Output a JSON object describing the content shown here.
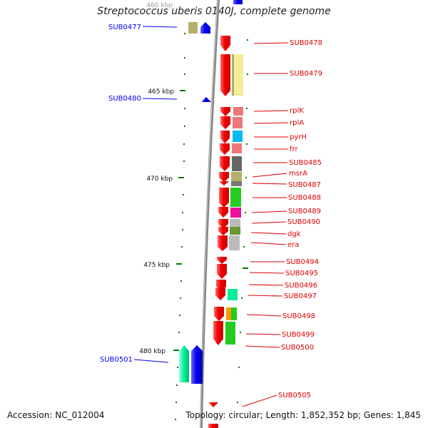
{
  "title": "Streptococcus uberis 0140J, complete genome",
  "footer": {
    "accession": "Accession: NC_012004",
    "topology": "Topology: circular; Length: 1,852,352 bp; Genes: 1,845"
  },
  "scale_labels": [
    "460 kbp",
    "465 kbp",
    "470 kbp",
    "475 kbp",
    "480 kbp"
  ],
  "colors": {
    "forward": "#ee0000",
    "reverse": "#0000ee",
    "axis": "#888888",
    "tick": "#007700",
    "ribosomal_pink": "#ee7777",
    "cyan": "#00bbee",
    "olive": "#b5ad70",
    "gray": "#666666",
    "green": "#22cc22",
    "magenta": "#ee1199",
    "pale_yellow": "#f4ee99",
    "teal": "#00ee99",
    "orange": "#ff9900",
    "light_gray": "#bbbbbb"
  },
  "genes": {
    "forward": [
      "SUB0478",
      "SUB0479",
      "rplK",
      "rplA",
      "pyrH",
      "frr",
      "SUB0485",
      "msrA",
      "SUB0487",
      "SUB0488",
      "SUB0489",
      "SUB0490",
      "dgk",
      "era",
      "SUB0494",
      "SUB0495",
      "SUB0496",
      "SUB0497",
      "SUB0498",
      "SUB0499",
      "SUB0500",
      "SUB0505"
    ],
    "reverse": [
      "SUB0477",
      "SUB0480",
      "SUB0501"
    ]
  }
}
